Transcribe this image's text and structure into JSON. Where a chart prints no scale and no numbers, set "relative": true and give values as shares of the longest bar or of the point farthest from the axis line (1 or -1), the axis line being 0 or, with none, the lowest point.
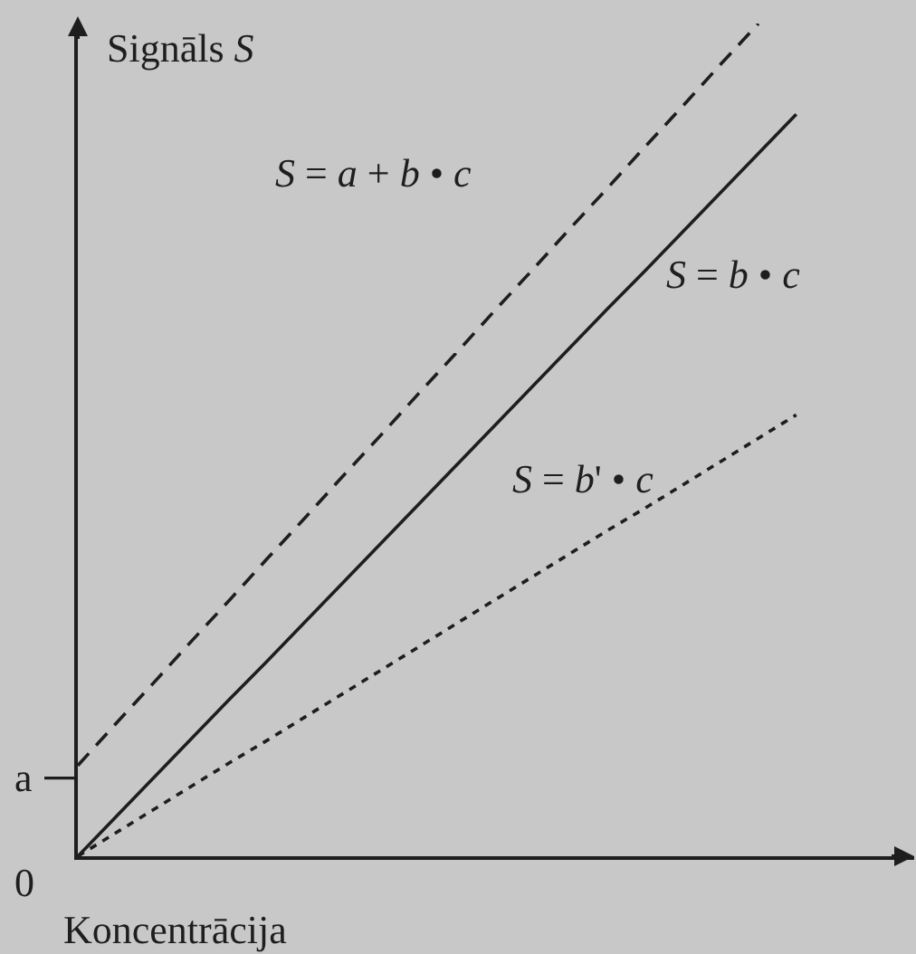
{
  "chart_data": {
    "type": "line",
    "relative": true,
    "xlabel": "Koncentrācija",
    "ylabel": "Signāls S",
    "categories": [
      null,
      null,
      null,
      null,
      null,
      null,
      null,
      null,
      null,
      null,
      null,
      null,
      null,
      null,
      null,
      null,
      null,
      null,
      null,
      null
    ],
    "series": [
      {
        "name": "S = a + b • c",
        "color": "#1e1e1e",
        "line_style": "dashed",
        "values": [
          0.109,
          0.159,
          0.208,
          0.258,
          0.307,
          0.357,
          0.406,
          0.456,
          0.505,
          0.555,
          0.604,
          0.654,
          0.703,
          0.753,
          0.802,
          0.852,
          0.901,
          0.951,
          1.0,
          null
        ]
      },
      {
        "name": "S = b • c",
        "color": "#1e1e1e",
        "line_style": "solid",
        "values": [
          0,
          0.047,
          0.094,
          0.141,
          0.188,
          0.234,
          0.281,
          0.328,
          0.375,
          0.422,
          0.469,
          0.516,
          0.563,
          0.61,
          0.657,
          0.703,
          0.75,
          0.797,
          0.844,
          0.891
        ]
      },
      {
        "name": "S = b' • c",
        "color": "#1e1e1e",
        "line_style": "dotted",
        "values": [
          0,
          0.028,
          0.056,
          0.084,
          0.112,
          0.139,
          0.167,
          0.195,
          0.223,
          0.251,
          0.279,
          0.307,
          0.335,
          0.363,
          0.391,
          0.418,
          0.446,
          0.474,
          0.502,
          0.53
        ]
      }
    ],
    "annotations": [
      "a",
      "0"
    ],
    "grid": false,
    "legend": false,
    "marker": "none"
  }
}
